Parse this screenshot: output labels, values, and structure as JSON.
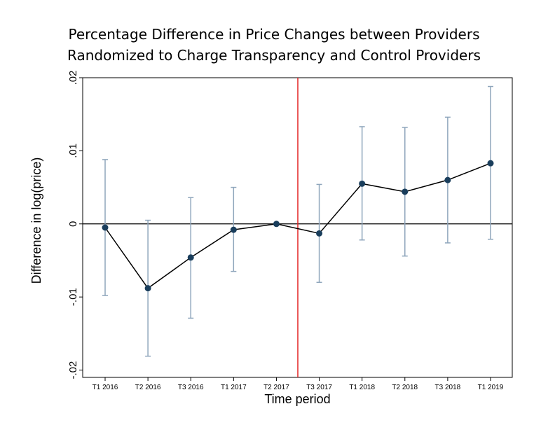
{
  "chart_data": {
    "type": "line",
    "title_lines": [
      "Percentage Difference in Price Changes between Providers",
      "Randomized to Charge Transparency and Control Providers"
    ],
    "xlabel": "Time period",
    "ylabel": "Difference in log(price)",
    "categories": [
      "T1 2016",
      "T2 2016",
      "T3 2016",
      "T1 2017",
      "T2 2017",
      "T3 2017",
      "T1 2018",
      "T2 2018",
      "T3 2018",
      "T1 2019"
    ],
    "series": [
      {
        "values": [
          -0.0005,
          -0.0088,
          -0.0046,
          -0.0008,
          0.0,
          -0.0013,
          0.0055,
          0.0044,
          0.006,
          0.0083
        ],
        "ci_lower": [
          -0.0098,
          -0.0181,
          -0.0129,
          -0.0065,
          0.0,
          -0.008,
          -0.0022,
          -0.0044,
          -0.0026,
          -0.0021
        ],
        "ci_upper": [
          0.0088,
          0.0005,
          0.0036,
          0.005,
          0.0,
          0.0054,
          0.0133,
          0.0132,
          0.0146,
          0.0188
        ]
      }
    ],
    "ylim": [
      -0.021,
      0.02
    ],
    "yticks": [
      0.02,
      0.01,
      0,
      -0.01,
      -0.02
    ],
    "ytick_labels": [
      ".02",
      ".01",
      "0",
      "-.01",
      "-.02"
    ],
    "reference_line_y": 0,
    "vertical_line_between": [
      "T2 2017",
      "T3 2017"
    ],
    "colors": {
      "marker": "#1a3e5c",
      "line": "#000000",
      "error_bar": "#8fa6bc",
      "vertical_line": "#e32222",
      "reference_line": "#000000"
    },
    "grid": false,
    "legend": "none"
  }
}
